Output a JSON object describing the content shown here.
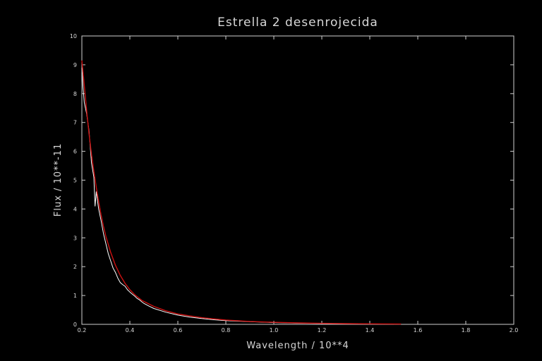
{
  "chart_data": {
    "type": "line",
    "title": "Estrella  2  desenrojecida",
    "xlabel": "Wavelength  /  10**4",
    "ylabel": "Flux  /  10**-11",
    "xlim": [
      0.2,
      2.0
    ],
    "ylim": [
      0,
      10
    ],
    "x_ticks": [
      "0.2",
      "0.4",
      "0.6",
      "0.8",
      "1.0",
      "1.2",
      "1.4",
      "1.6",
      "1.8",
      "2.0"
    ],
    "y_ticks": [
      "0",
      "1",
      "2",
      "3",
      "4",
      "5",
      "6",
      "7",
      "8",
      "9",
      "10"
    ],
    "grid": false,
    "colors": {
      "observed": "#ffffff",
      "model": "#cc1111",
      "frame": "#cfcfcf",
      "background": "#000000"
    },
    "series": [
      {
        "style": "observed",
        "x": [
          0.2,
          0.205,
          0.21,
          0.215,
          0.22,
          0.23,
          0.24,
          0.25,
          0.255,
          0.26,
          0.27,
          0.28,
          0.29,
          0.3,
          0.31,
          0.32,
          0.33,
          0.34,
          0.35,
          0.36,
          0.37,
          0.38,
          0.39,
          0.4,
          0.41,
          0.42,
          0.43,
          0.44,
          0.45,
          0.46,
          0.48,
          0.5,
          0.55,
          0.6,
          0.65,
          0.7,
          0.75,
          0.8,
          0.85,
          0.9,
          1.0,
          1.1,
          1.2,
          1.3,
          1.4,
          1.5
        ],
        "y": [
          8.9,
          8.2,
          7.7,
          7.5,
          7.3,
          6.7,
          5.6,
          5.1,
          4.1,
          4.6,
          4.0,
          3.6,
          3.15,
          2.8,
          2.45,
          2.2,
          1.95,
          1.8,
          1.6,
          1.45,
          1.38,
          1.32,
          1.2,
          1.12,
          1.05,
          0.98,
          0.9,
          0.85,
          0.78,
          0.72,
          0.63,
          0.55,
          0.42,
          0.32,
          0.25,
          0.2,
          0.16,
          0.13,
          0.11,
          0.09,
          0.06,
          0.04,
          0.03,
          0.02,
          0.015,
          0.01
        ]
      },
      {
        "style": "model",
        "x": [
          0.2,
          0.21,
          0.22,
          0.23,
          0.24,
          0.25,
          0.26,
          0.27,
          0.28,
          0.29,
          0.3,
          0.32,
          0.34,
          0.36,
          0.38,
          0.4,
          0.42,
          0.45,
          0.5,
          0.55,
          0.6,
          0.65,
          0.7,
          0.8,
          0.9,
          1.0,
          1.1,
          1.2,
          1.3,
          1.4,
          1.53
        ],
        "y": [
          9.15,
          8.3,
          7.4,
          6.6,
          5.9,
          5.3,
          4.75,
          4.25,
          3.8,
          3.4,
          3.05,
          2.5,
          2.05,
          1.7,
          1.42,
          1.2,
          1.03,
          0.83,
          0.62,
          0.47,
          0.36,
          0.29,
          0.23,
          0.15,
          0.1,
          0.07,
          0.05,
          0.035,
          0.025,
          0.018,
          0.01
        ]
      }
    ]
  }
}
